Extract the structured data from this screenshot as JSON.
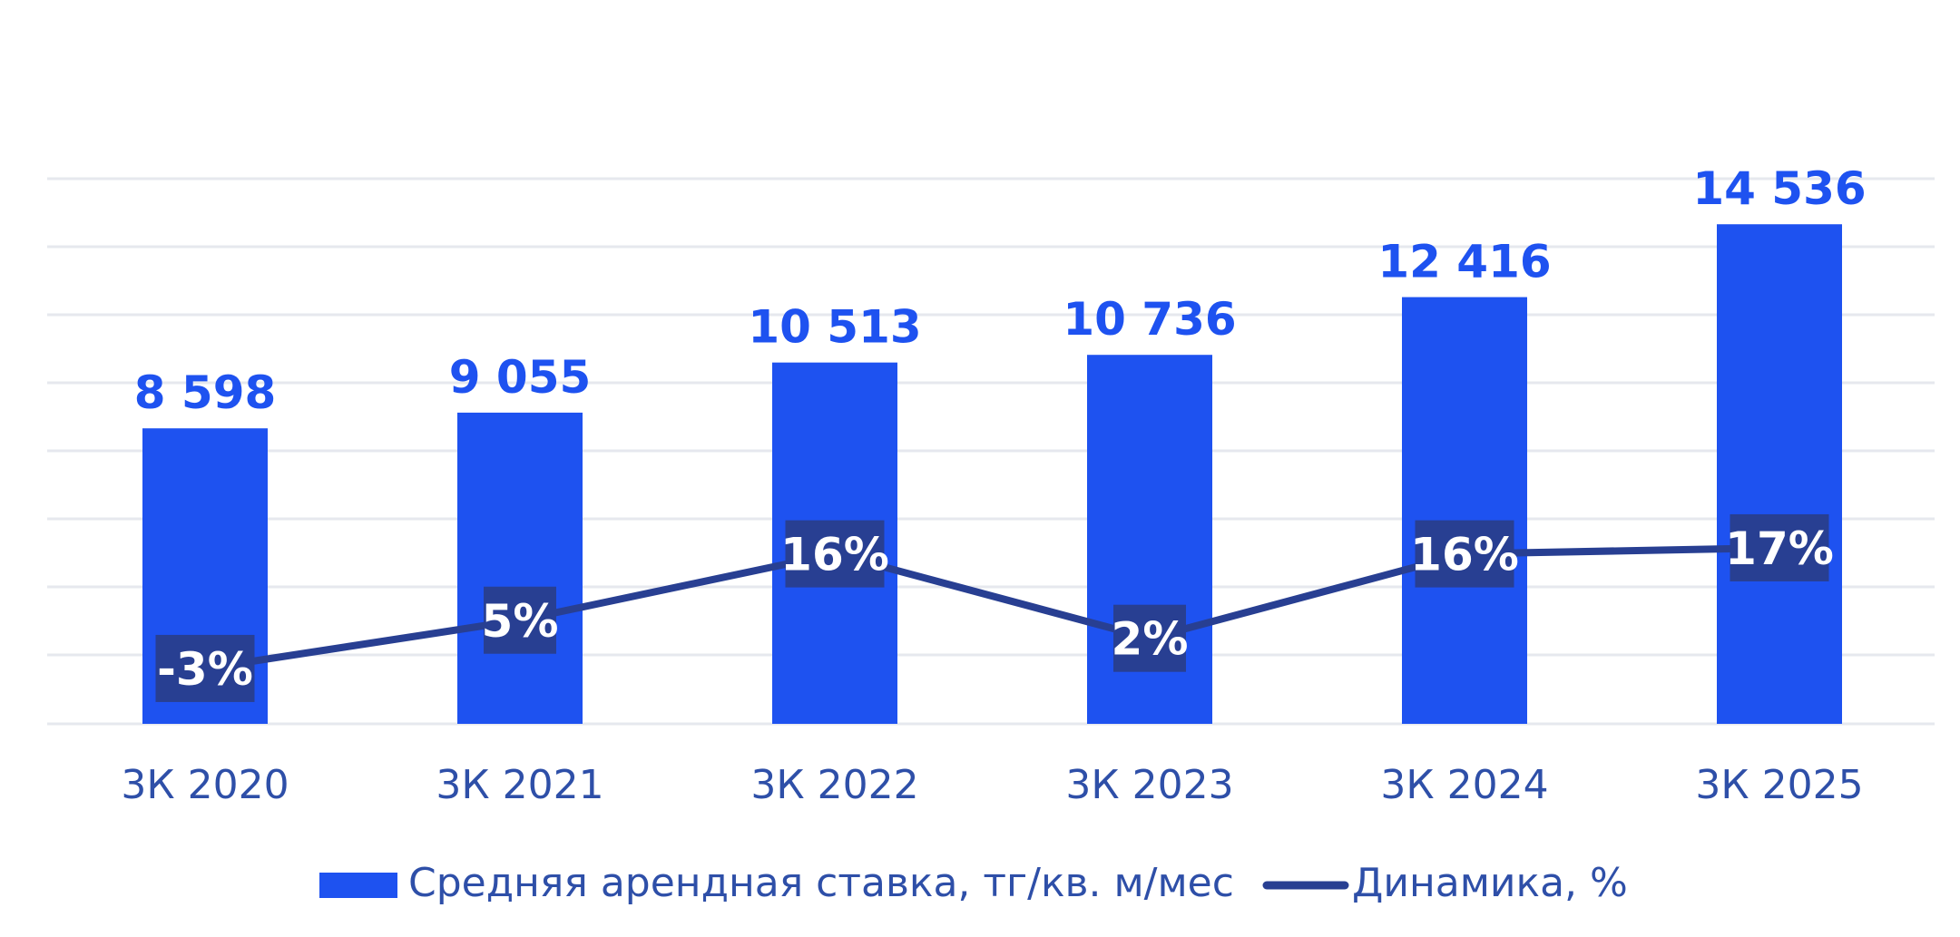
{
  "chart_data": {
    "type": "bar",
    "categories": [
      "3К 2020",
      "3К 2021",
      "3К 2022",
      "3К 2023",
      "3К 2024",
      "3К 2025"
    ],
    "series": [
      {
        "name": "Средняя арендная ставка, тг/кв. м/мес",
        "type": "bar",
        "values": [
          8598,
          9055,
          10513,
          10736,
          12416,
          14536
        ],
        "labels": [
          "8 598",
          "9 055",
          "10 513",
          "10 736",
          "12 416",
          "14 536"
        ],
        "color": "#1E52F0"
      },
      {
        "name": "Динамика, %",
        "type": "line",
        "values": [
          -3,
          5,
          16,
          2,
          16,
          17
        ],
        "labels": [
          "-3%",
          "5%",
          "16%",
          "2%",
          "16%",
          "17%"
        ],
        "color": "#283F92"
      }
    ],
    "ylim": [
      0,
      16000
    ],
    "grid": true,
    "legend_position": "bottom",
    "colors": {
      "bar": "#1E52F0",
      "line": "#283F92",
      "category_text": "#2E4FA8",
      "grid": "#E6E8EE"
    }
  }
}
